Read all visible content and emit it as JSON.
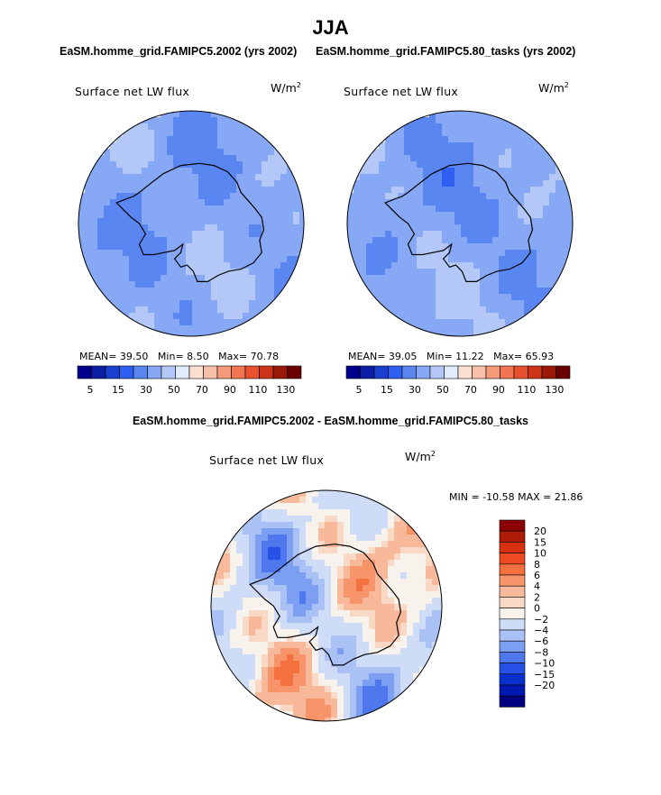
{
  "title": "JJA",
  "panels": [
    {
      "subtitle": "EaSM.homme_grid.FAMIPC5.2002 (yrs 2002)",
      "variable": "Surface net LW flux",
      "units": "W/m",
      "units_exp": "2",
      "stats": {
        "mean_label": "MEAN=",
        "mean": "39.50",
        "min_label": "Min=",
        "min": "8.50",
        "max_label": "Max=",
        "max": "70.78"
      }
    },
    {
      "subtitle": "EaSM.homme_grid.FAMIPC5.80_tasks (yrs 2002)",
      "variable": "Surface net LW flux",
      "units": "W/m",
      "units_exp": "2",
      "stats": {
        "mean_label": "MEAN=",
        "mean": "39.05",
        "min_label": "Min=",
        "min": "11.22",
        "max_label": "Max=",
        "max": "65.93"
      }
    }
  ],
  "diff_panel": {
    "subtitle": "EaSM.homme_grid.FAMIPC5.2002 - EaSM.homme_grid.FAMIPC5.80_tasks",
    "variable": "Surface net LW flux",
    "units": "W/m",
    "units_exp": "2",
    "minmax": "MIN = -10.58 MAX =  21.86"
  },
  "chart_data": [
    {
      "type": "heatmap",
      "projection": "south-polar-stereographic",
      "title": "EaSM.homme_grid.FAMIPC5.2002 (yrs 2002)",
      "label": "Surface net LW flux",
      "units": "W/m2",
      "stats": {
        "mean": 39.5,
        "min": 8.5,
        "max": 70.78
      },
      "colorbar": {
        "orientation": "horizontal",
        "colors": [
          "#00008b",
          "#0a1fa6",
          "#1a3fd0",
          "#2e5ff0",
          "#5a86f2",
          "#86a8f5",
          "#b3c8f7",
          "#e0ebfb",
          "#fbe0d2",
          "#f8c0a8",
          "#f59a78",
          "#f27450",
          "#e8502e",
          "#cc3318",
          "#9a1808",
          "#6a0000"
        ],
        "tick_labels": [
          "5",
          "15",
          "30",
          "50",
          "70",
          "90",
          "110",
          "130"
        ]
      }
    },
    {
      "type": "heatmap",
      "projection": "south-polar-stereographic",
      "title": "EaSM.homme_grid.FAMIPC5.80_tasks (yrs 2002)",
      "label": "Surface net LW flux",
      "units": "W/m2",
      "stats": {
        "mean": 39.05,
        "min": 11.22,
        "max": 65.93
      },
      "colorbar": {
        "orientation": "horizontal",
        "colors": [
          "#00008b",
          "#0a1fa6",
          "#1a3fd0",
          "#2e5ff0",
          "#5a86f2",
          "#86a8f5",
          "#b3c8f7",
          "#e0ebfb",
          "#fbe0d2",
          "#f8c0a8",
          "#f59a78",
          "#f27450",
          "#e8502e",
          "#cc3318",
          "#9a1808",
          "#6a0000"
        ],
        "tick_labels": [
          "5",
          "15",
          "30",
          "50",
          "70",
          "90",
          "110",
          "130"
        ]
      }
    },
    {
      "type": "heatmap",
      "projection": "south-polar-stereographic",
      "title": "EaSM.homme_grid.FAMIPC5.2002 - EaSM.homme_grid.FAMIPC5.80_tasks",
      "label": "Surface net LW flux",
      "units": "W/m2",
      "stats": {
        "min": -10.58,
        "max": 21.86
      },
      "colorbar": {
        "orientation": "vertical",
        "colors": [
          "#8b0000",
          "#b01a08",
          "#d6300e",
          "#ee4a22",
          "#f5703f",
          "#f7946a",
          "#f8b89a",
          "#fad8c6",
          "#f7f2ec",
          "#cfdcf7",
          "#a9c1f4",
          "#7d9ff2",
          "#4f78ee",
          "#2650e6",
          "#0a2fcf",
          "#0018b0",
          "#000080"
        ],
        "tick_labels": [
          "20",
          "15",
          "10",
          "8",
          "6",
          "4",
          "2",
          "0",
          "−2",
          "−4",
          "−6",
          "−8",
          "−10",
          "−15",
          "−20"
        ]
      }
    }
  ]
}
